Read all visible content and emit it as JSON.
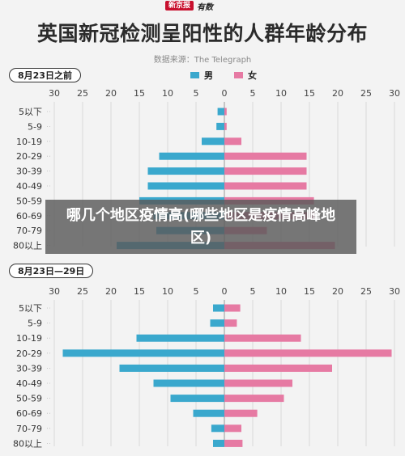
{
  "header": {
    "logo_badge": "新京报",
    "logo_script": "有数",
    "title": "英国新冠检测呈阳性的人群年龄分布",
    "source": "数据来源：The Telegraph"
  },
  "legend": {
    "male": "男",
    "female": "女"
  },
  "overlay": {
    "text": "哪几个地区疫情高(哪些地区是疫情高峰地区)"
  },
  "colors": {
    "male": "#3aa8cd",
    "female": "#e67aa3",
    "grid": "#cccccc"
  },
  "chart_data": [
    {
      "type": "bar",
      "orientation": "population-pyramid",
      "period_label": "8月23日之前",
      "axis_ticks": [
        "30",
        "25",
        "20",
        "15",
        "10",
        "5",
        "0",
        "5",
        "10",
        "15",
        "20",
        "25",
        "30"
      ],
      "xlim": [
        -30,
        30
      ],
      "categories": [
        "5以下",
        "5-9",
        "10-19",
        "20-29",
        "30-39",
        "40-49",
        "50-59",
        "60-69",
        "70-79",
        "80以上"
      ],
      "series": [
        {
          "name": "男",
          "values": [
            1.2,
            1.4,
            4,
            11.5,
            13.5,
            13.5,
            15,
            12.5,
            12,
            19
          ]
        },
        {
          "name": "女",
          "values": [
            0.4,
            0.4,
            3,
            14.5,
            14.5,
            14.5,
            15.8,
            16,
            7.5,
            19.5
          ]
        }
      ]
    },
    {
      "type": "bar",
      "orientation": "population-pyramid",
      "period_label": "8月23日—29日",
      "axis_ticks": [
        "30",
        "25",
        "20",
        "15",
        "10",
        "5",
        "0",
        "5",
        "10",
        "15",
        "20",
        "25",
        "30"
      ],
      "xlim": [
        -30,
        30
      ],
      "categories": [
        "5以下",
        "5-9",
        "10-19",
        "20-29",
        "30-39",
        "40-49",
        "50-59",
        "60-69",
        "70-79",
        "80以上"
      ],
      "series": [
        {
          "name": "男",
          "values": [
            2,
            2.5,
            15.5,
            28.5,
            18.5,
            12.5,
            9.5,
            5.5,
            2.3,
            2
          ]
        },
        {
          "name": "女",
          "values": [
            2.8,
            2.2,
            13.5,
            29.5,
            19,
            12,
            10.5,
            5.8,
            3,
            3.2
          ]
        }
      ]
    }
  ]
}
